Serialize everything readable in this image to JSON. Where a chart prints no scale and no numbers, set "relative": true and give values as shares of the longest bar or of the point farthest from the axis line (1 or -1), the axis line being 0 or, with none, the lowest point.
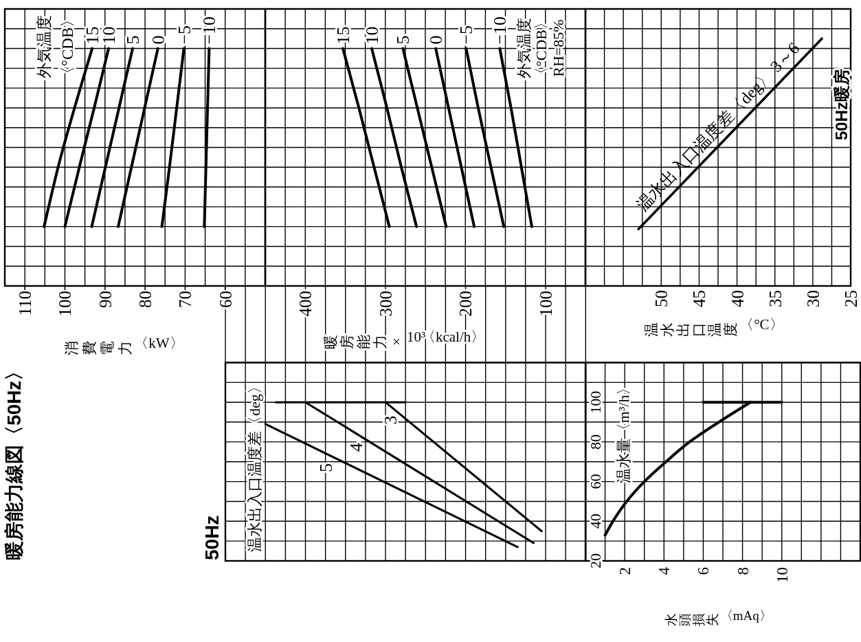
{
  "chart_data": [
    {
      "type": "line",
      "title": "暖房能力線図〈50Hz〉",
      "xlabel": "消費電力〈kW〉",
      "legend_title": "外気温度〈°CDB〉",
      "relative": true,
      "grid": true,
      "line_style": "solid",
      "xlim": [
        115,
        50
      ],
      "xticks": [
        {
          "value": 115,
          "label": null
        },
        110,
        {
          "value": 105,
          "label": null
        },
        100,
        {
          "value": 95,
          "label": null
        },
        90,
        {
          "value": 85,
          "label": null
        },
        80,
        {
          "value": 75,
          "label": null
        },
        70,
        {
          "value": 65,
          "label": null
        },
        60,
        {
          "value": 55,
          "label": null
        },
        {
          "value": 50,
          "label": null
        }
      ],
      "series": [
        {
          "name": "15",
          "color": "#000000",
          "x": [
            105.2,
            101.7,
            97.6,
            93.2
          ],
          "values": [
            0.25,
            0.5,
            0.75,
            1
          ]
        },
        {
          "name": "10",
          "color": "#000000",
          "x": [
            100.0,
            96.4,
            92.7,
            89.1
          ],
          "values": [
            0.25,
            0.5,
            0.75,
            1
          ]
        },
        {
          "name": "5",
          "color": "#000000",
          "x": [
            93.3,
            89.9,
            86.5,
            83.1
          ],
          "values": [
            0.25,
            0.5,
            0.75,
            1
          ]
        },
        {
          "name": "0",
          "color": "#000000",
          "x": [
            86.7,
            83.4,
            80.1,
            76.8
          ],
          "values": [
            0.25,
            0.5,
            0.75,
            1
          ]
        },
        {
          "name": "−5",
          "color": "#000000",
          "x": [
            75.8,
            73.9,
            72.1,
            70.3
          ],
          "values": [
            0.25,
            0.5,
            0.75,
            1
          ]
        },
        {
          "name": "−10",
          "color": "#000000",
          "x": [
            65.2,
            64.8,
            64.4,
            64.0
          ],
          "values": [
            0.25,
            0.5,
            0.75,
            1
          ]
        }
      ]
    },
    {
      "type": "line",
      "xlabel": "暖房能力×10³〈kcal/h〉",
      "legend_title": "外気温度〈°CDB〉RH=85%",
      "relative": true,
      "grid": true,
      "line_style": "solid",
      "xlim": [
        450,
        50
      ],
      "xticks": [
        {
          "value": 450,
          "label": null
        },
        {
          "value": 425,
          "label": null
        },
        400,
        {
          "value": 375,
          "label": null
        },
        {
          "value": 350,
          "label": null
        },
        {
          "value": 325,
          "label": null
        },
        300,
        {
          "value": 275,
          "label": null
        },
        {
          "value": 250,
          "label": null
        },
        {
          "value": 225,
          "label": null
        },
        200,
        {
          "value": 175,
          "label": null
        },
        {
          "value": 150,
          "label": null
        },
        {
          "value": 125,
          "label": null
        },
        100,
        {
          "value": 75,
          "label": null
        },
        {
          "value": 50,
          "label": null
        }
      ],
      "series": [
        {
          "name": "15",
          "color": "#000000",
          "x": [
            295,
            314,
            333,
            353
          ],
          "values": [
            0.25,
            0.5,
            0.75,
            1
          ]
        },
        {
          "name": "10",
          "color": "#000000",
          "x": [
            261,
            280,
            298,
            317
          ],
          "values": [
            0.25,
            0.5,
            0.75,
            1
          ]
        },
        {
          "name": "5",
          "color": "#000000",
          "x": [
            224,
            242,
            260,
            278
          ],
          "values": [
            0.25,
            0.5,
            0.75,
            1
          ]
        },
        {
          "name": "0",
          "color": "#000000",
          "x": [
            189,
            205,
            221,
            237
          ],
          "values": [
            0.25,
            0.5,
            0.75,
            1
          ]
        },
        {
          "name": "−5",
          "color": "#000000",
          "x": [
            152,
            168,
            184,
            199
          ],
          "values": [
            0.25,
            0.5,
            0.75,
            1
          ]
        },
        {
          "name": "−10",
          "color": "#000000",
          "x": [
            117,
            130,
            143,
            157
          ],
          "values": [
            0.25,
            0.5,
            0.75,
            1
          ]
        }
      ]
    },
    {
      "type": "line",
      "xlabel": "温水出口温度〈°C〉",
      "annotations": [
        "50Hz暖房"
      ],
      "relative": true,
      "grid": true,
      "line_style": "solid",
      "xlim": [
        60,
        25
      ],
      "xticks": [
        {
          "value": 60,
          "label": null
        },
        {
          "value": 57.5,
          "label": null
        },
        {
          "value": 55,
          "label": null
        },
        {
          "value": 52.5,
          "label": null
        },
        50,
        {
          "value": 47.5,
          "label": null
        },
        45,
        {
          "value": 42.5,
          "label": null
        },
        40,
        {
          "value": 37.5,
          "label": null
        },
        35,
        {
          "value": 32.5,
          "label": null
        },
        30,
        {
          "value": 27.5,
          "label": null
        },
        25
      ],
      "series": [
        {
          "name": "温水出入口温度差〈deg〉 3～6",
          "color": "#000000",
          "x": [
            53,
            28.8
          ],
          "values": [
            0.23,
            1
          ]
        }
      ]
    },
    {
      "type": "line",
      "title": "50Hz",
      "legend_title": "温水出入口温度差〈deg〉",
      "grid": true,
      "tick_labels": false,
      "line_style": "solid",
      "xlim": [
        500,
        50
      ],
      "xticks": [
        {
          "value": 500,
          "label": null
        },
        {
          "value": 475,
          "label": null
        },
        {
          "value": 450,
          "label": null
        },
        {
          "value": 425,
          "label": null
        },
        400,
        {
          "value": 375,
          "label": null
        },
        {
          "value": 350,
          "label": null
        },
        {
          "value": 325,
          "label": null
        },
        300,
        {
          "value": 275,
          "label": null
        },
        {
          "value": 250,
          "label": null
        },
        {
          "value": 225,
          "label": null
        },
        200,
        {
          "value": 175,
          "label": null
        },
        {
          "value": 150,
          "label": null
        },
        {
          "value": 125,
          "label": null
        },
        100,
        {
          "value": 75,
          "label": null
        },
        {
          "value": 50,
          "label": null
        }
      ],
      "ylim": [
        20,
        120
      ],
      "yticks": [
        20,
        {
          "value": 30,
          "label": null
        },
        40,
        {
          "value": 50,
          "label": null
        },
        60,
        {
          "value": 70,
          "label": null
        },
        80,
        {
          "value": 90,
          "label": null
        },
        100,
        {
          "value": 110,
          "label": null
        },
        {
          "value": 120,
          "label": null
        }
      ],
      "series": [
        {
          "name": "3",
          "color": "#000000",
          "x": [
            300,
            105
          ],
          "values": [
            100,
            35
          ]
        },
        {
          "name": "4",
          "color": "#000000",
          "x": [
            400,
            115
          ],
          "values": [
            100,
            29
          ]
        },
        {
          "name": "5",
          "color": "#000000",
          "x": [
            450,
            135
          ],
          "values": [
            89,
            27
          ]
        },
        {
          "color": "#000000",
          "x": [
            437,
            275
          ],
          "values": [
            100,
            100
          ]
        }
      ]
    },
    {
      "type": "line",
      "xlabel": "水頭損失〈mAq〉",
      "ylabel": "温水量〈m³/h〉",
      "grid": true,
      "line_style": "solid",
      "xlim": [
        0,
        14
      ],
      "xticks": [
        {
          "value": 0,
          "label": null
        },
        {
          "value": 1,
          "label": null
        },
        2,
        {
          "value": 3,
          "label": null
        },
        4,
        {
          "value": 5,
          "label": null
        },
        6,
        {
          "value": 7,
          "label": null
        },
        8,
        {
          "value": 9,
          "label": null
        },
        10,
        {
          "value": 11,
          "label": null
        },
        {
          "value": 12,
          "label": null
        },
        {
          "value": 13,
          "label": null
        },
        {
          "value": 14,
          "label": null
        }
      ],
      "ylim": [
        20,
        120
      ],
      "yticks": [
        20,
        {
          "value": 30,
          "label": null
        },
        40,
        {
          "value": 50,
          "label": null
        },
        60,
        {
          "value": 70,
          "label": null
        },
        80,
        {
          "value": 90,
          "label": null
        },
        100,
        {
          "value": 110,
          "label": null
        },
        {
          "value": 120,
          "label": null
        }
      ],
      "series": [
        {
          "color": "#000000",
          "x": [
            1.0,
            1.4,
            2.1,
            3.0,
            4.1,
            5.3,
            6.8,
            8.4
          ],
          "values": [
            33,
            40,
            50,
            60,
            70,
            80,
            90,
            100
          ]
        },
        {
          "color": "#000000",
          "x": [
            6,
            10
          ],
          "values": [
            100,
            100
          ]
        }
      ]
    }
  ]
}
